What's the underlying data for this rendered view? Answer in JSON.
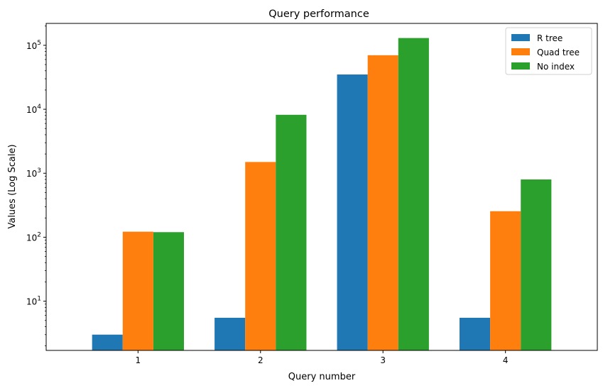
{
  "chart_data": {
    "type": "bar",
    "title": "Query performance",
    "xlabel": "Query number",
    "ylabel": "Values (Log Scale)",
    "y_scale": "log",
    "ylim": [
      1.7,
      220000
    ],
    "y_ticks": [
      {
        "value": 10,
        "base": "10",
        "exp": "1"
      },
      {
        "value": 100,
        "base": "10",
        "exp": "2"
      },
      {
        "value": 1000,
        "base": "10",
        "exp": "3"
      },
      {
        "value": 10000,
        "base": "10",
        "exp": "4"
      },
      {
        "value": 100000,
        "base": "10",
        "exp": "5"
      }
    ],
    "categories": [
      "1",
      "2",
      "3",
      "4"
    ],
    "series": [
      {
        "name": "R tree",
        "color": "#1f77b4",
        "values": [
          3,
          5.5,
          35000,
          5.5
        ]
      },
      {
        "name": "Quad tree",
        "color": "#ff7f0e",
        "values": [
          122,
          1500,
          70000,
          255
        ]
      },
      {
        "name": "No index",
        "color": "#2ca02c",
        "values": [
          120,
          8200,
          130000,
          800
        ]
      }
    ],
    "legend_position": "top-right",
    "grid": false
  }
}
